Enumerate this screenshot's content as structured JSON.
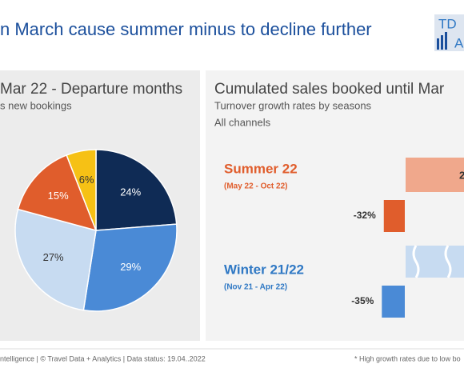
{
  "header": {
    "title": "n March cause summer minus to decline further",
    "logo_top": "TD",
    "logo_bottom": "A"
  },
  "chart_data": [
    {
      "type": "pie",
      "title": "Mar 22 - Departure months",
      "subtitle": "s new bookings",
      "values": [
        24,
        29,
        27,
        15,
        6
      ],
      "value_labels": [
        "24%",
        "29%",
        "27%",
        "15%",
        "6%"
      ],
      "colors": [
        "#0f2b55",
        "#4a8ad6",
        "#c7dbf1",
        "#e05d2c",
        "#f6c115"
      ]
    },
    {
      "type": "hbar",
      "title": "Cumulated sales booked until Mar",
      "subtitle": "Turnover growth rates by seasons",
      "note": "All channels",
      "categories": [
        "Summer 22",
        "Winter 21/22"
      ],
      "category_periods": [
        "(May 22 - Oct 22)",
        "(Nov 21 - Apr 22)"
      ],
      "category_colors": [
        "#e05d2c",
        "#2f78c4"
      ],
      "values": [
        -32,
        -35
      ],
      "value_labels": [
        "-32%",
        "-35%"
      ],
      "colors": [
        "#e05d2c",
        "#4a8ad6"
      ],
      "cut_label": "2"
    }
  ],
  "footer": {
    "source": "ntelligence  |  © Travel Data + Analytics  |  Data status: 19.04..2022",
    "footnote": "* High growth rates due to low bo"
  }
}
